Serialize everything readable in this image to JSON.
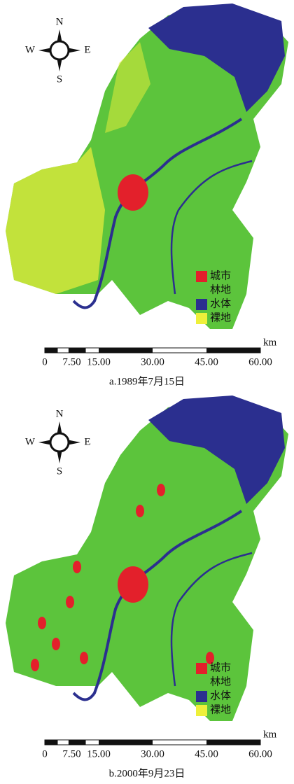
{
  "panels": [
    {
      "compass": {
        "n": "N",
        "s": "S",
        "w": "W",
        "e": "E"
      },
      "legend": [
        {
          "label": "城市",
          "color": "#e3202b"
        },
        {
          "label": "林地",
          "color": "#5cc43c"
        },
        {
          "label": "水体",
          "color": "#2b2f8f"
        },
        {
          "label": "裸地",
          "color": "#eef03a"
        }
      ],
      "scale": {
        "unit": "km",
        "ticks": [
          "0",
          "7.50",
          "15.00",
          "30.00",
          "45.00",
          "60.00"
        ]
      },
      "caption": "a.1989年7月15日"
    },
    {
      "compass": {
        "n": "N",
        "s": "S",
        "w": "W",
        "e": "E"
      },
      "legend": [
        {
          "label": "城市",
          "color": "#e3202b"
        },
        {
          "label": "林地",
          "color": "#5cc43c"
        },
        {
          "label": "水体",
          "color": "#2b2f8f"
        },
        {
          "label": "裸地",
          "color": "#eef03a"
        }
      ],
      "scale": {
        "unit": "km",
        "ticks": [
          "0",
          "7.50",
          "15.00",
          "30.00",
          "45.00",
          "60.00"
        ]
      },
      "caption": "b.2000年9月23日"
    }
  ]
}
